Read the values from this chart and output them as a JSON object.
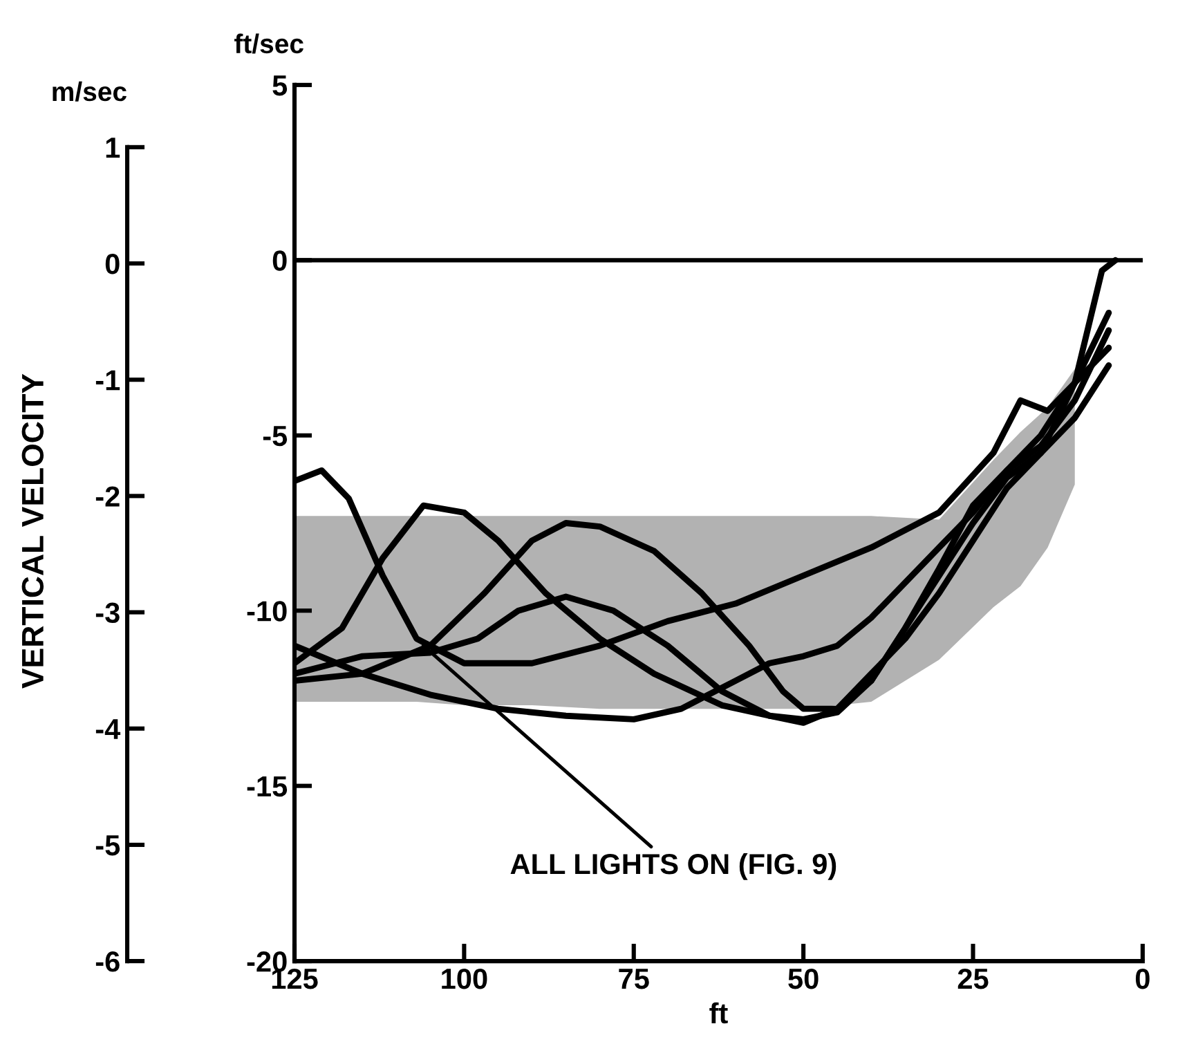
{
  "chart_data": {
    "type": "line",
    "xlabel": "ft",
    "ylabel": "ft/sec",
    "y2label": "m/sec",
    "annotations": [
      "VERTICAL VELOCITY",
      {
        "text": "ALL LIGHTS ON (FIG. 9)",
        "x": 106,
        "y": -11
      }
    ],
    "xlim": [
      125,
      0
    ],
    "xticks": [
      125,
      100,
      75,
      50,
      25,
      0
    ],
    "ylim": [
      -20,
      5
    ],
    "yticks": [
      -20,
      -15,
      -10,
      -5,
      0,
      5
    ],
    "y2lim": [
      -6,
      1
    ],
    "y2ticks": [
      -6,
      -5,
      -4,
      -3,
      -2,
      -1,
      0,
      1
    ],
    "ref_lines": [
      {
        "axis": "y",
        "value": 0,
        "color": "#000000"
      }
    ],
    "grid": false,
    "marker": "none",
    "line_style": "solid",
    "series": [
      {
        "color": "#000000",
        "x": [
          125,
          121,
          117,
          112,
          107,
          100,
          90,
          80,
          70,
          60,
          50,
          40,
          30,
          22,
          18,
          14,
          10,
          5
        ],
        "values": [
          -6.3,
          -6.0,
          -6.8,
          -9.0,
          -10.8,
          -11.5,
          -11.5,
          -11.0,
          -10.3,
          -9.8,
          -9.0,
          -8.2,
          -7.2,
          -5.5,
          -4.0,
          -4.3,
          -3.5,
          -1.5
        ],
        "lower": [
          -12.6,
          -12.6,
          -12.6,
          -12.6,
          -12.6,
          -12.7,
          -12.7,
          -12.8,
          -12.8,
          -12.8,
          -12.8,
          -12.6,
          -11.4,
          -9.9,
          -9.3,
          -8.2,
          -6.4,
          null
        ],
        "upper": [
          -7.3,
          -7.3,
          -7.3,
          -7.3,
          -7.3,
          -7.3,
          -7.3,
          -7.3,
          -7.3,
          -7.3,
          -7.3,
          -7.3,
          -7.4,
          -5.7,
          -4.9,
          -4.2,
          -3.1,
          null
        ]
      },
      {
        "color": "#000000",
        "x": [
          125,
          118,
          112,
          106,
          100,
          95,
          88,
          80,
          72,
          62,
          55,
          50,
          45,
          40,
          35,
          30,
          25,
          20,
          15,
          10,
          5
        ],
        "values": [
          -11.5,
          -10.5,
          -8.5,
          -7.0,
          -7.2,
          -8.0,
          -9.5,
          -10.8,
          -11.8,
          -12.7,
          -13.0,
          -13.1,
          -12.9,
          -12.0,
          -10.5,
          -8.8,
          -7.0,
          -6.0,
          -5.3,
          -4.0,
          -2.0
        ]
      },
      {
        "color": "#000000",
        "x": [
          125,
          115,
          105,
          97,
          90,
          85,
          80,
          72,
          65,
          58,
          53,
          50,
          45,
          40,
          35,
          30,
          25,
          20,
          15,
          10,
          5
        ],
        "values": [
          -12.0,
          -11.8,
          -11.0,
          -9.5,
          -8.0,
          -7.5,
          -7.6,
          -8.3,
          -9.5,
          -11.0,
          -12.3,
          -12.8,
          -12.8,
          -12.0,
          -10.5,
          -9.0,
          -7.5,
          -6.2,
          -5.5,
          -4.5,
          -3.0
        ]
      },
      {
        "color": "#000000",
        "x": [
          125,
          115,
          105,
          98,
          92,
          85,
          78,
          70,
          62,
          55,
          50,
          45,
          40,
          35,
          30,
          25,
          20,
          15,
          10,
          6,
          4
        ],
        "values": [
          -11.8,
          -11.3,
          -11.2,
          -10.8,
          -10.0,
          -9.6,
          -10.0,
          -11.0,
          -12.3,
          -13.0,
          -13.2,
          -12.8,
          -11.8,
          -10.8,
          -9.5,
          -8.0,
          -6.5,
          -5.5,
          -3.5,
          -0.3,
          0
        ]
      },
      {
        "color": "#000000",
        "x": [
          125,
          115,
          105,
          95,
          85,
          75,
          68,
          60,
          55,
          50,
          45,
          40,
          35,
          30,
          25,
          20,
          15,
          10,
          5
        ],
        "values": [
          -11.0,
          -11.8,
          -12.4,
          -12.8,
          -13.0,
          -13.1,
          -12.8,
          -12.0,
          -11.5,
          -11.3,
          -11.0,
          -10.2,
          -9.2,
          -8.2,
          -7.2,
          -6.0,
          -5.0,
          -3.5,
          -2.5
        ]
      }
    ]
  }
}
